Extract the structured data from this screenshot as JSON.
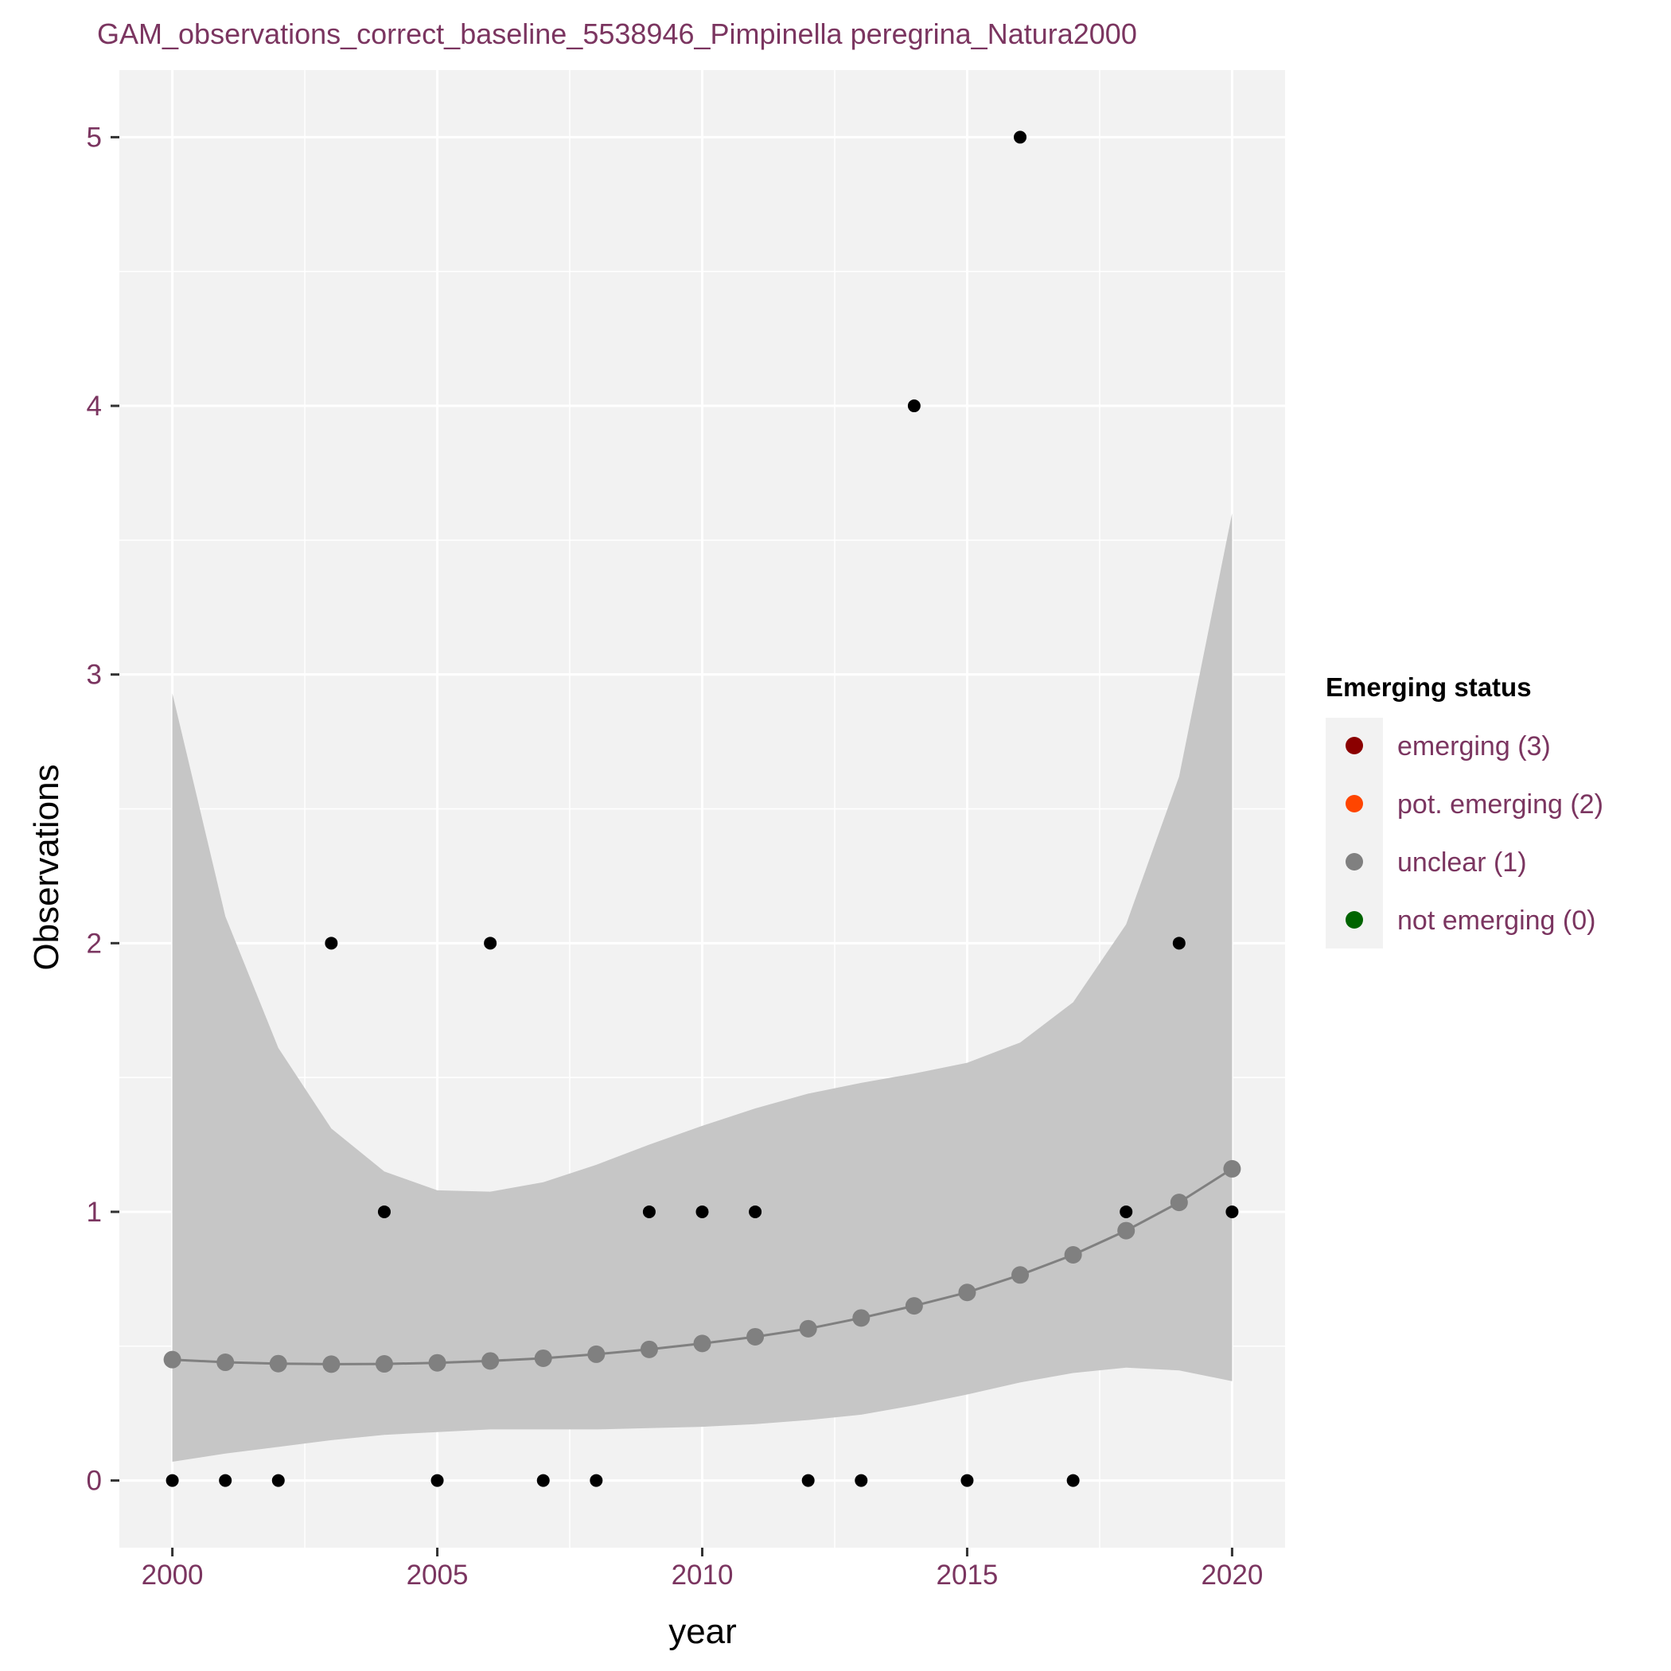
{
  "chart_data": {
    "type": "scatter",
    "title": "GAM_observations_correct_baseline_5538946_Pimpinella peregrina_Natura2000",
    "xlabel": "year",
    "ylabel": "Observations",
    "xlim": [
      1999.0,
      2021.0
    ],
    "ylim": [
      -0.25,
      5.25
    ],
    "x_ticks": [
      2000,
      2005,
      2010,
      2015,
      2020
    ],
    "x_tick_labels": [
      "2000",
      "2005",
      "2010",
      "2015",
      "2020"
    ],
    "y_ticks": [
      0,
      1,
      2,
      3,
      4,
      5
    ],
    "y_tick_labels": [
      "0",
      "1",
      "2",
      "3",
      "4",
      "5"
    ],
    "grid": true,
    "observations": {
      "x": [
        2000,
        2001,
        2002,
        2003,
        2004,
        2005,
        2006,
        2007,
        2008,
        2009,
        2010,
        2011,
        2012,
        2013,
        2014,
        2015,
        2016,
        2017,
        2018,
        2019,
        2020
      ],
      "y": [
        0,
        0,
        0,
        2,
        1,
        0,
        2,
        0,
        0,
        1,
        1,
        1,
        0,
        0,
        4,
        0,
        5,
        0,
        1,
        2,
        1
      ],
      "color": "#000000"
    },
    "gam_fit": {
      "x": [
        2000,
        2001,
        2002,
        2003,
        2004,
        2005,
        2006,
        2007,
        2008,
        2009,
        2010,
        2011,
        2012,
        2013,
        2014,
        2015,
        2016,
        2017,
        2018,
        2019,
        2020
      ],
      "y": [
        0.45,
        0.44,
        0.435,
        0.433,
        0.434,
        0.438,
        0.445,
        0.455,
        0.47,
        0.488,
        0.51,
        0.535,
        0.565,
        0.605,
        0.65,
        0.7,
        0.765,
        0.84,
        0.93,
        1.035,
        1.16
      ],
      "status": [
        "unclear (1)",
        "unclear (1)",
        "unclear (1)",
        "unclear (1)",
        "unclear (1)",
        "unclear (1)",
        "unclear (1)",
        "unclear (1)",
        "unclear (1)",
        "unclear (1)",
        "unclear (1)",
        "unclear (1)",
        "unclear (1)",
        "unclear (1)",
        "unclear (1)",
        "unclear (1)",
        "unclear (1)",
        "unclear (1)",
        "unclear (1)",
        "unclear (1)",
        "unclear (1)"
      ],
      "color": "#808080"
    },
    "confidence_band": {
      "x": [
        2000,
        2001,
        2002,
        2003,
        2004,
        2005,
        2006,
        2007,
        2008,
        2009,
        2010,
        2011,
        2012,
        2013,
        2014,
        2015,
        2016,
        2017,
        2018,
        2019,
        2020
      ],
      "lower": [
        0.07,
        0.1,
        0.125,
        0.15,
        0.17,
        0.18,
        0.19,
        0.19,
        0.19,
        0.195,
        0.2,
        0.21,
        0.225,
        0.245,
        0.28,
        0.32,
        0.365,
        0.4,
        0.42,
        0.41,
        0.37
      ],
      "upper": [
        2.93,
        2.1,
        1.61,
        1.31,
        1.15,
        1.08,
        1.075,
        1.11,
        1.175,
        1.25,
        1.32,
        1.385,
        1.44,
        1.48,
        1.515,
        1.555,
        1.63,
        1.78,
        2.07,
        2.62,
        3.6
      ],
      "color": "#c6c6c6"
    },
    "legend": {
      "title": "Emerging status",
      "position": "right",
      "entries": [
        {
          "label": "emerging (3)",
          "color": "#8b0000"
        },
        {
          "label": "pot. emerging (2)",
          "color": "#ff4500"
        },
        {
          "label": "unclear (1)",
          "color": "#808080"
        },
        {
          "label": "not emerging (0)",
          "color": "#006400"
        }
      ]
    },
    "colors": {
      "panel_background": "#f2f2f2",
      "grid": "#ffffff",
      "tick_text": "#7b3560"
    }
  }
}
